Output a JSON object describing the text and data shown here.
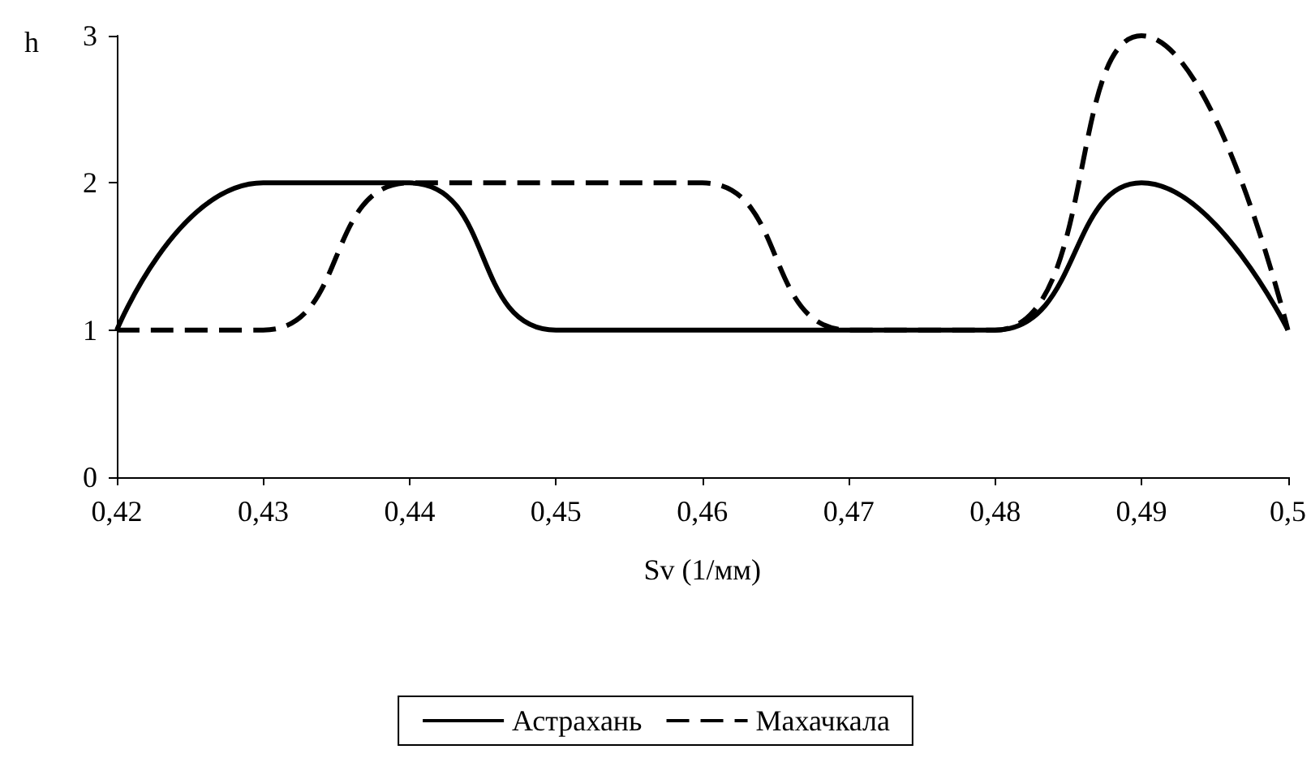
{
  "chart_data": {
    "type": "line",
    "xlabel": "Sv (1/мм)",
    "ylabel": "h",
    "x": [
      0.42,
      0.43,
      0.44,
      0.45,
      0.46,
      0.47,
      0.48,
      0.49,
      0.5
    ],
    "series": [
      {
        "name": "Астрахань",
        "color": "#000000",
        "line_style": "solid",
        "values": [
          1,
          2,
          2,
          1,
          1,
          1,
          1,
          2,
          1
        ]
      },
      {
        "name": "Махачкала",
        "color": "#000000",
        "line_style": "dashed",
        "values": [
          1,
          1,
          2,
          2,
          2,
          1,
          1,
          3,
          1
        ]
      }
    ],
    "xlim": [
      0.42,
      0.5
    ],
    "xticks": [
      {
        "value": 0.42,
        "label": "0,42"
      },
      {
        "value": 0.43,
        "label": "0,43"
      },
      {
        "value": 0.44,
        "label": "0,44"
      },
      {
        "value": 0.45,
        "label": "0,45"
      },
      {
        "value": 0.46,
        "label": "0,46"
      },
      {
        "value": 0.47,
        "label": "0,47"
      },
      {
        "value": 0.48,
        "label": "0,48"
      },
      {
        "value": 0.49,
        "label": "0,49"
      },
      {
        "value": 0.5,
        "label": "0,5"
      }
    ],
    "ylim": [
      0,
      3
    ],
    "yticks": [
      0,
      1,
      2,
      3
    ],
    "grid": false,
    "legend": "bottom",
    "marker": "none"
  }
}
